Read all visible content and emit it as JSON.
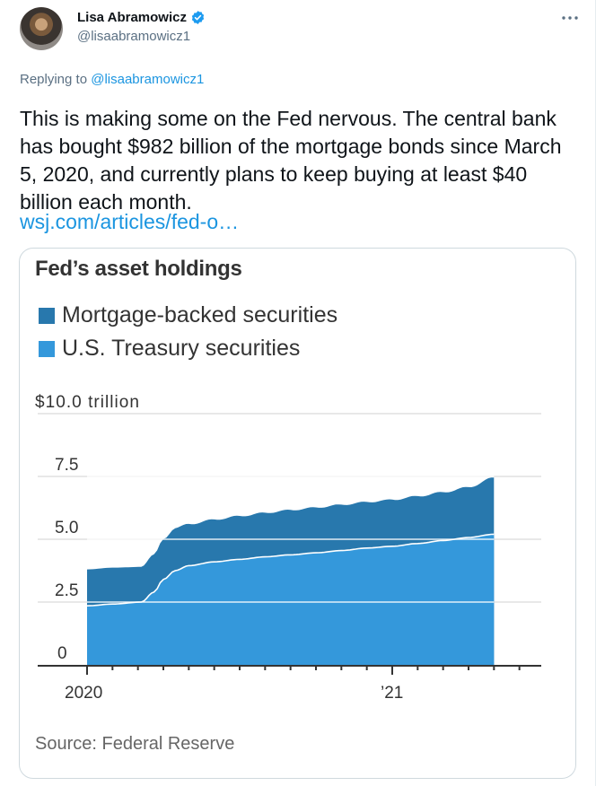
{
  "tweet": {
    "author_name": "Lisa Abramowicz",
    "author_handle": "@lisaabramowicz1",
    "verified": true,
    "replying_to_prefix": "Replying to",
    "replying_to_handle": "@lisaabramowicz1",
    "text": "This is making some on the Fed nervous. The central bank has bought $982 billion of the mortgage bonds since March 5, 2020, and currently plans to keep buying at least $40 billion each month.",
    "link_text": "wsj.com/articles/fed-o…",
    "icons": {
      "more": "more-horizontal-icon",
      "verified": "verified-badge-icon"
    }
  },
  "colors": {
    "link": "#1b95e0",
    "verified": "#1d9bf0",
    "mbs": "#2878ad",
    "treasury": "#3498db"
  },
  "chart_data": {
    "type": "area",
    "stacked": true,
    "title": "Fed’s asset holdings",
    "source": "Source: Federal Reserve",
    "xlabel": "",
    "ylabel": "",
    "y_unit_label": "$10.0 trillion",
    "y_ticks": [
      "0",
      "2.5",
      "5.0",
      "7.5",
      "$10.0 trillion"
    ],
    "y_tick_values": [
      0,
      2.5,
      5.0,
      7.5,
      10.0
    ],
    "ylim": [
      0,
      10
    ],
    "x_tick_labels": [
      "2020",
      "’21"
    ],
    "x_range": [
      "2020-01",
      "2021-05"
    ],
    "grid": true,
    "legend": [
      "Mortgage-backed securities",
      "U.S. Treasury securities"
    ],
    "legend_position": "top-left",
    "x": [
      "2020-01",
      "2020-02",
      "2020-03-05",
      "2020-03-20",
      "2020-04",
      "2020-04-15",
      "2020-05",
      "2020-06",
      "2020-07",
      "2020-08",
      "2020-09",
      "2020-10",
      "2020-11",
      "2020-12",
      "2021-01",
      "2021-02",
      "2021-03",
      "2021-04",
      "2021-05"
    ],
    "series": [
      {
        "name": "U.S. Treasury securities",
        "values": [
          2.35,
          2.42,
          2.5,
          2.9,
          3.4,
          3.75,
          3.95,
          4.1,
          4.2,
          4.3,
          4.38,
          4.46,
          4.55,
          4.65,
          4.72,
          4.83,
          4.95,
          5.07,
          5.2
        ]
      },
      {
        "name": "Mortgage-backed securities",
        "values": [
          1.45,
          1.45,
          1.4,
          1.5,
          1.6,
          1.7,
          1.65,
          1.68,
          1.72,
          1.75,
          1.78,
          1.8,
          1.82,
          1.83,
          1.85,
          1.88,
          1.92,
          2.0,
          2.25
        ]
      }
    ],
    "totals": [
      3.8,
      3.87,
      3.9,
      4.4,
      5.0,
      5.45,
      5.6,
      5.78,
      5.92,
      6.05,
      6.16,
      6.26,
      6.37,
      6.48,
      6.57,
      6.71,
      6.87,
      7.07,
      7.45
    ]
  }
}
